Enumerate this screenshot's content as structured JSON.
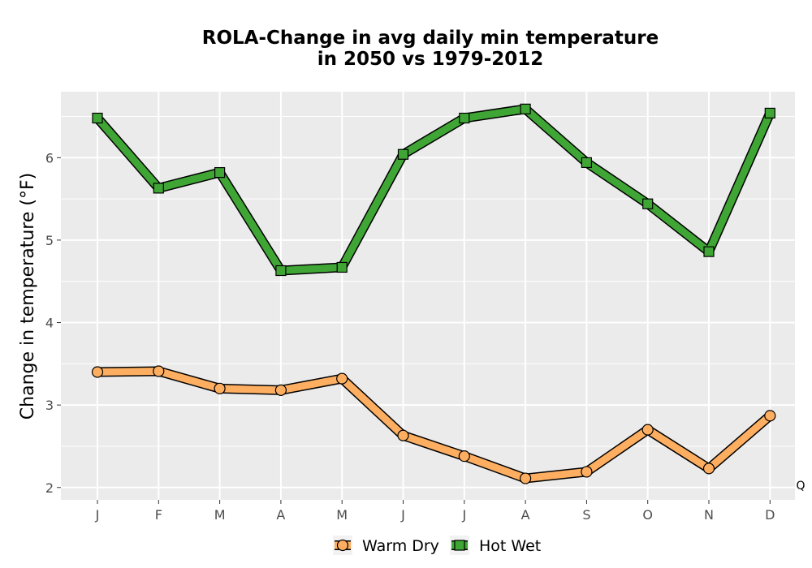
{
  "chart_data": {
    "type": "line",
    "title": "ROLA-Change in avg daily min temperature\nin 2050 vs 1979-2012",
    "xlabel": "",
    "ylabel": "Change in temperature (°F)",
    "categories": [
      "J",
      "F",
      "M",
      "A",
      "M",
      "J",
      "J",
      "A",
      "S",
      "O",
      "N",
      "D"
    ],
    "ylim": [
      1.85,
      6.8
    ],
    "yticks": [
      2,
      3,
      4,
      5,
      6
    ],
    "grid": true,
    "legend_position": "bottom",
    "series": [
      {
        "name": "Warm Dry",
        "marker": "circle",
        "color": "#fdae61",
        "values": [
          3.4,
          3.41,
          3.2,
          3.18,
          3.32,
          2.63,
          2.38,
          2.11,
          2.19,
          2.7,
          2.23,
          2.87
        ]
      },
      {
        "name": "Hot Wet",
        "marker": "square",
        "color": "#3fa535",
        "values": [
          6.48,
          5.63,
          5.82,
          4.63,
          4.67,
          6.04,
          6.48,
          6.59,
          5.94,
          5.44,
          4.86,
          6.54
        ]
      }
    ],
    "corner_note": "Q"
  },
  "colors": {
    "panel_background": "#ebebeb",
    "grid_line": "#ffffff",
    "series_outline": "#000000"
  }
}
